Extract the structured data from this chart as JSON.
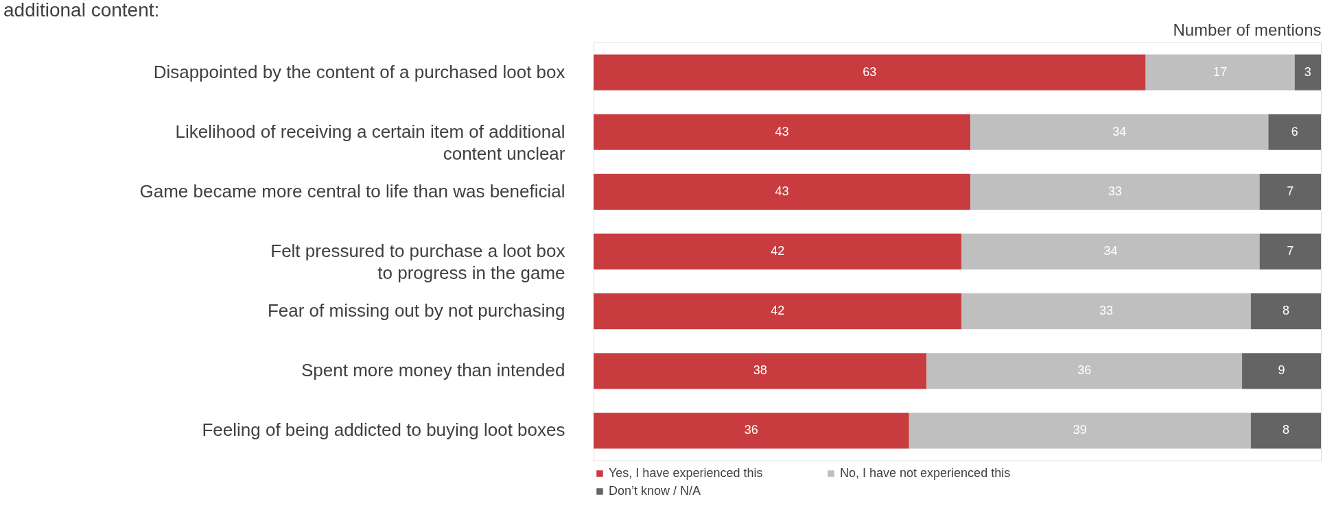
{
  "chart_data": {
    "type": "bar",
    "orientation": "horizontal",
    "stacked": true,
    "title": "additional content:",
    "xlabel": "Number of mentions",
    "categories": [
      "Disappointed by the content of a purchased loot box",
      "Likelihood of receiving a certain item of additional\ncontent unclear",
      "Game became more central to life than was beneficial",
      "Felt pressured to purchase a loot box\nto progress in the game",
      "Fear of missing out by not purchasing",
      "Spent more money than intended",
      "Feeling of being addicted to buying loot boxes"
    ],
    "series": [
      {
        "name": "Yes, I have experienced this",
        "color": "#c83c3f",
        "values": [
          63,
          43,
          43,
          42,
          42,
          38,
          36
        ]
      },
      {
        "name": "No, I have not experienced this",
        "color": "#bfbfbf",
        "values": [
          17,
          34,
          33,
          34,
          33,
          36,
          39
        ]
      },
      {
        "name": "Don’t know / N/A",
        "color": "#646464",
        "values": [
          3,
          6,
          7,
          7,
          8,
          9,
          8
        ]
      }
    ],
    "data_labels": true,
    "legend": "bottom",
    "tick_labels": false,
    "grid": false
  }
}
